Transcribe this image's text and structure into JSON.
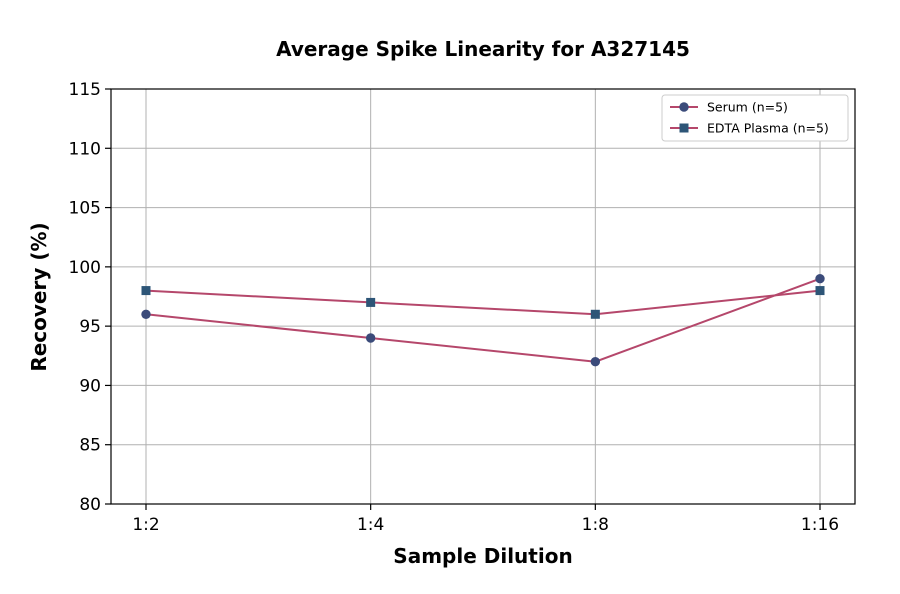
{
  "chart_data": {
    "type": "line",
    "title": "Average Spike Linearity for A327145",
    "xlabel": "Sample Dilution",
    "ylabel": "Recovery (%)",
    "categories": [
      "1:2",
      "1:4",
      "1:8",
      "1:16"
    ],
    "ylim": [
      80,
      115
    ],
    "yticks": [
      80,
      85,
      90,
      95,
      100,
      105,
      110,
      115
    ],
    "grid": true,
    "legend_position": "top-right",
    "series": [
      {
        "name": "Serum (n=5)",
        "values": [
          96,
          94,
          92,
          99
        ],
        "marker": "circle",
        "line_color": "#b5476b",
        "marker_color": "#3b4b7a"
      },
      {
        "name": "EDTA Plasma (n=5)",
        "values": [
          98,
          97,
          96,
          98
        ],
        "marker": "square",
        "line_color": "#b5476b",
        "marker_color": "#2d5577"
      }
    ]
  }
}
